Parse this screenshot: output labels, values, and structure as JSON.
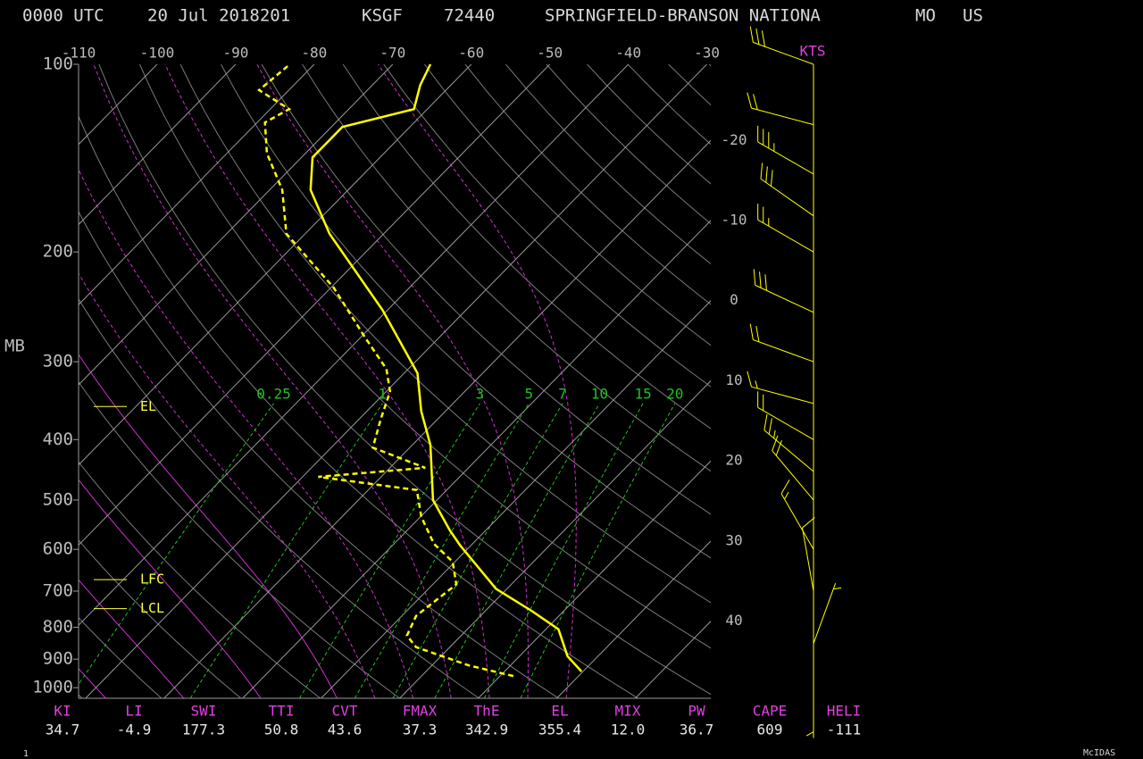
{
  "chart_data": {
    "type": "skewt",
    "header": [
      "0000 UTC",
      "20 Jul 2018201",
      "KSGF",
      "72440",
      "SPRINGFIELD-BRANSON NATIONA",
      "MO",
      "US"
    ],
    "ylabel": "MB",
    "yscale": "log",
    "ylim": [
      1040,
      100
    ],
    "yticks": [
      100,
      200,
      300,
      400,
      500,
      600,
      700,
      800,
      900,
      1000
    ],
    "xlim": [
      -110,
      -29.5
    ],
    "xticks": [
      -110,
      -100,
      -90,
      -80,
      -70,
      -60,
      -50,
      -40,
      -30,
      -20,
      -10,
      0,
      10,
      20,
      30,
      40
    ],
    "mixing_ratio_lines": [
      0.25,
      1,
      3,
      5,
      7,
      10,
      15,
      20
    ],
    "mixing_ratio_color": "#20c020",
    "series": [
      {
        "color": "#ffff00",
        "dashed": false,
        "pressure": [
          942,
          890,
          806,
          754,
          694,
          592,
          560,
          500,
          408,
          360,
          313,
          248,
          187,
          159,
          141,
          134,
          126,
          118,
          108,
          100
        ],
        "values": [
          29.8,
          26.1,
          21.6,
          16.0,
          8.6,
          -1.3,
          -4.5,
          -10.5,
          -17.7,
          -23.1,
          -28.3,
          -40.6,
          -56.9,
          -64.8,
          -68.6,
          -68.6,
          -68.6,
          -61.7,
          -63.9,
          -65.2
        ]
      },
      {
        "color": "#ffff00",
        "dashed": true,
        "pressure": [
          958,
          921,
          861,
          825,
          767,
          683,
          628,
          588,
          532,
          482,
          459,
          444,
          412,
          370,
          335,
          308,
          274,
          228,
          187,
          159,
          139,
          124,
          118,
          110,
          100
        ],
        "values": [
          21.7,
          14.7,
          5.7,
          3.1,
          1.8,
          3.0,
          -0.3,
          -4.9,
          -9.9,
          -13.8,
          -28.0,
          -15.5,
          -24.7,
          -27.3,
          -29.5,
          -32.8,
          -39.5,
          -49.7,
          -62.4,
          -68.4,
          -74.9,
          -79.0,
          -77.6,
          -83.8,
          -83.1
        ]
      }
    ],
    "levels": [
      {
        "name": "EL",
        "pressure": 354
      },
      {
        "name": "LFC",
        "pressure": 671
      },
      {
        "name": "LCL",
        "pressure": 747
      }
    ],
    "wind_units": "KTS",
    "wind_color": "#ffff00",
    "winds": {
      "pressure": [
        100,
        125,
        150,
        175,
        200,
        250,
        300,
        350,
        400,
        450,
        500,
        600,
        700,
        850,
        950
      ],
      "direction": [
        290,
        285,
        300,
        305,
        300,
        295,
        290,
        285,
        300,
        310,
        320,
        330,
        350,
        20,
        180
      ],
      "speed": [
        30,
        20,
        35,
        30,
        25,
        30,
        20,
        15,
        20,
        25,
        20,
        15,
        10,
        5,
        5
      ]
    },
    "indices": {
      "labels": [
        "KI",
        "LI",
        "SWI",
        "TTI",
        "CVT",
        "FMAX",
        "ThE",
        "EL",
        "MIX",
        "PW",
        "CAPE",
        "HELI"
      ],
      "values": [
        "34.7",
        "-4.9",
        "177.3",
        "50.8",
        "43.6",
        "37.3",
        "342.9",
        "355.4",
        "12.0",
        "36.7",
        "609",
        "-111"
      ]
    },
    "footer": [
      "1",
      "McIDAS"
    ]
  }
}
